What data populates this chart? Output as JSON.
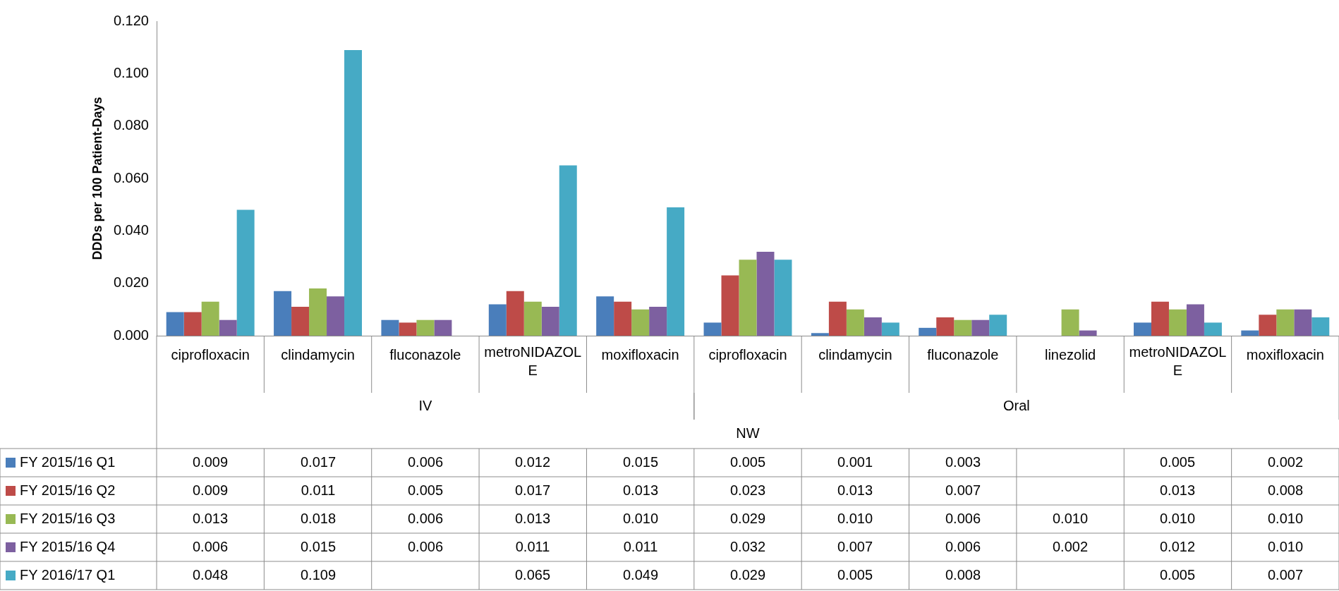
{
  "chart_data": {
    "type": "bar",
    "ylabel": "DDDs per 100 Patient-Days",
    "categories": [
      "ciprofloxacin",
      "clindamycin",
      "fluconazole",
      "metroNIDAZOLE",
      "moxifloxacin",
      "ciprofloxacin",
      "clindamycin",
      "fluconazole",
      "linezolid",
      "metroNIDAZOLE",
      "moxifloxacin"
    ],
    "annotations": [
      "IV",
      "Oral",
      "NW"
    ],
    "series": [
      {
        "name": "FY 2015/16 Q1",
        "color": "#4a7ebb",
        "values": [
          0.009,
          0.017,
          0.006,
          0.012,
          0.015,
          0.005,
          0.001,
          0.003,
          null,
          0.005,
          0.002
        ],
        "value_labels": [
          "0.009",
          "0.017",
          "0.006",
          "0.012",
          "0.015",
          "0.005",
          "0.001",
          "0.003",
          null,
          "0.005",
          "0.002"
        ]
      },
      {
        "name": "FY 2015/16 Q2",
        "color": "#be4b48",
        "values": [
          0.009,
          0.011,
          0.005,
          0.017,
          0.013,
          0.023,
          0.013,
          0.007,
          null,
          0.013,
          0.008
        ],
        "value_labels": [
          "0.009",
          "0.011",
          "0.005",
          "0.017",
          "0.013",
          "0.023",
          "0.013",
          "0.007",
          null,
          "0.013",
          "0.008"
        ]
      },
      {
        "name": "FY 2015/16 Q3",
        "color": "#98b954",
        "values": [
          0.013,
          0.018,
          0.006,
          0.013,
          0.01,
          0.029,
          0.01,
          0.006,
          0.01,
          0.01,
          0.01
        ],
        "value_labels": [
          "0.013",
          "0.018",
          "0.006",
          "0.013",
          "0.010",
          "0.029",
          "0.010",
          "0.006",
          "0.010",
          "0.010",
          "0.010"
        ]
      },
      {
        "name": "FY 2015/16 Q4",
        "color": "#7d60a0",
        "values": [
          0.006,
          0.015,
          0.006,
          0.011,
          0.011,
          0.032,
          0.007,
          0.006,
          0.002,
          0.012,
          0.01
        ],
        "value_labels": [
          "0.006",
          "0.015",
          "0.006",
          "0.011",
          "0.011",
          "0.032",
          "0.007",
          "0.006",
          "0.002",
          "0.012",
          "0.010"
        ]
      },
      {
        "name": "FY 2016/17 Q1",
        "color": "#46aac5",
        "values": [
          0.048,
          0.109,
          null,
          0.065,
          0.049,
          0.029,
          0.005,
          0.008,
          null,
          0.005,
          0.007
        ],
        "value_labels": [
          "0.048",
          "0.109",
          null,
          "0.065",
          "0.049",
          "0.029",
          "0.005",
          "0.008",
          null,
          "0.005",
          "0.007"
        ]
      }
    ],
    "ylim": [
      0,
      0.12
    ],
    "yticks": [
      "0.000",
      "0.020",
      "0.040",
      "0.060",
      "0.080",
      "0.100",
      "0.120"
    ],
    "legend": "bottom",
    "grid": false
  }
}
